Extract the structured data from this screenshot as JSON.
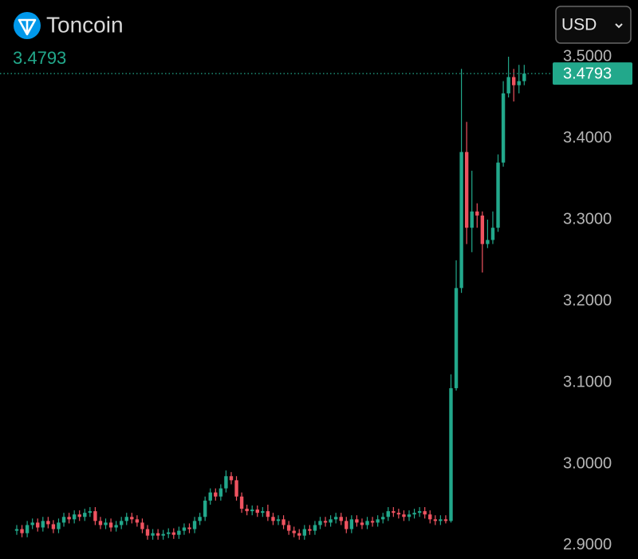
{
  "header": {
    "currency": "USD"
  },
  "chart_data": {
    "type": "candlestick",
    "title": "Toncoin",
    "last_price": 3.4793,
    "up_color": "#22a88b",
    "down_color": "#ef5360",
    "ylim": [
      2.8833,
      3.5206
    ],
    "yticks": [
      {
        "value": 2.9,
        "label": "2.9000"
      },
      {
        "value": 3.0,
        "label": "3.0000"
      },
      {
        "value": 3.1,
        "label": "3.1000"
      },
      {
        "value": 3.2,
        "label": "3.2000"
      },
      {
        "value": 3.3,
        "label": "3.3000"
      },
      {
        "value": 3.4,
        "label": "3.4000"
      },
      {
        "value": 3.5,
        "label": "3.5000"
      }
    ],
    "open": [
      2.918,
      2.92,
      2.915,
      2.925,
      2.928,
      2.922,
      2.93,
      2.926,
      2.92,
      2.928,
      2.935,
      2.932,
      2.938,
      2.935,
      2.94,
      2.942,
      2.93,
      2.925,
      2.928,
      2.922,
      2.925,
      2.93,
      2.935,
      2.932,
      2.928,
      2.92,
      2.912,
      2.915,
      2.912,
      2.914,
      2.916,
      2.913,
      2.918,
      2.922,
      2.92,
      2.93,
      2.935,
      2.955,
      2.965,
      2.96,
      2.97,
      2.985,
      2.98,
      2.96,
      2.945,
      2.942,
      2.944,
      2.94,
      2.942,
      2.935,
      2.93,
      2.932,
      2.925,
      2.918,
      2.915,
      2.912,
      2.92,
      2.918,
      2.925,
      2.93,
      2.928,
      2.932,
      2.935,
      2.93,
      2.92,
      2.932,
      2.928,
      2.925,
      2.93,
      2.928,
      2.932,
      2.935,
      2.942,
      2.94,
      2.938,
      2.935,
      2.938,
      2.94,
      2.942,
      2.938,
      2.932,
      2.93,
      2.932,
      2.93,
      3.093,
      3.216,
      3.383,
      3.29,
      3.31,
      3.305,
      3.27,
      3.275,
      3.29,
      3.37,
      3.455,
      3.475,
      3.465,
      3.47
    ],
    "high": [
      2.925,
      2.925,
      2.93,
      2.933,
      2.933,
      2.935,
      2.935,
      2.931,
      2.933,
      2.94,
      2.94,
      2.943,
      2.943,
      2.945,
      2.947,
      2.947,
      2.935,
      2.933,
      2.933,
      2.93,
      2.935,
      2.94,
      2.94,
      2.937,
      2.933,
      2.925,
      2.92,
      2.92,
      2.919,
      2.921,
      2.921,
      2.923,
      2.927,
      2.927,
      2.935,
      2.94,
      2.96,
      2.97,
      2.97,
      2.975,
      2.992,
      2.99,
      2.985,
      2.965,
      2.95,
      2.949,
      2.949,
      2.947,
      2.95,
      2.94,
      2.937,
      2.937,
      2.93,
      2.923,
      2.92,
      2.925,
      2.925,
      2.93,
      2.935,
      2.935,
      2.937,
      2.94,
      2.94,
      2.935,
      2.937,
      2.937,
      2.933,
      2.935,
      2.935,
      2.937,
      2.94,
      2.947,
      2.947,
      2.945,
      2.943,
      2.943,
      2.945,
      2.947,
      2.947,
      2.943,
      2.937,
      2.937,
      2.937,
      3.11,
      3.25,
      3.485,
      3.42,
      3.36,
      3.32,
      3.31,
      3.3,
      3.31,
      3.38,
      3.47,
      3.5,
      3.485,
      3.49,
      3.49
    ],
    "low": [
      2.913,
      2.91,
      2.91,
      2.92,
      2.917,
      2.917,
      2.921,
      2.915,
      2.915,
      2.923,
      2.927,
      2.927,
      2.93,
      2.93,
      2.935,
      2.925,
      2.92,
      2.92,
      2.917,
      2.917,
      2.92,
      2.925,
      2.927,
      2.923,
      2.915,
      2.907,
      2.907,
      2.907,
      2.907,
      2.909,
      2.908,
      2.908,
      2.913,
      2.915,
      2.915,
      2.925,
      2.93,
      2.95,
      2.955,
      2.955,
      2.965,
      2.975,
      2.955,
      2.94,
      2.937,
      2.937,
      2.935,
      2.935,
      2.93,
      2.925,
      2.925,
      2.92,
      2.913,
      2.91,
      2.907,
      2.907,
      2.913,
      2.913,
      2.92,
      2.923,
      2.923,
      2.927,
      2.925,
      2.915,
      2.915,
      2.923,
      2.92,
      2.92,
      2.923,
      2.923,
      2.927,
      2.93,
      2.935,
      2.933,
      2.93,
      2.93,
      2.933,
      2.935,
      2.933,
      2.927,
      2.925,
      2.925,
      2.927,
      2.928,
      3.09,
      3.21,
      3.27,
      3.26,
      3.29,
      3.235,
      3.265,
      3.27,
      3.285,
      3.365,
      3.45,
      3.445,
      3.455,
      3.465
    ],
    "close": [
      2.92,
      2.915,
      2.925,
      2.928,
      2.922,
      2.93,
      2.926,
      2.92,
      2.928,
      2.935,
      2.932,
      2.938,
      2.935,
      2.94,
      2.942,
      2.93,
      2.925,
      2.928,
      2.922,
      2.925,
      2.93,
      2.935,
      2.932,
      2.928,
      2.92,
      2.912,
      2.915,
      2.912,
      2.914,
      2.916,
      2.913,
      2.918,
      2.922,
      2.92,
      2.93,
      2.935,
      2.955,
      2.965,
      2.96,
      2.97,
      2.985,
      2.98,
      2.96,
      2.945,
      2.942,
      2.944,
      2.94,
      2.942,
      2.935,
      2.93,
      2.932,
      2.925,
      2.918,
      2.915,
      2.912,
      2.92,
      2.918,
      2.925,
      2.93,
      2.928,
      2.932,
      2.935,
      2.93,
      2.92,
      2.932,
      2.928,
      2.925,
      2.93,
      2.928,
      2.932,
      2.935,
      2.942,
      2.94,
      2.938,
      2.935,
      2.938,
      2.94,
      2.942,
      2.938,
      2.932,
      2.93,
      2.932,
      2.93,
      3.093,
      3.216,
      3.383,
      3.29,
      3.31,
      3.305,
      3.27,
      3.275,
      3.29,
      3.37,
      3.455,
      3.475,
      3.465,
      3.47,
      3.4793
    ]
  }
}
